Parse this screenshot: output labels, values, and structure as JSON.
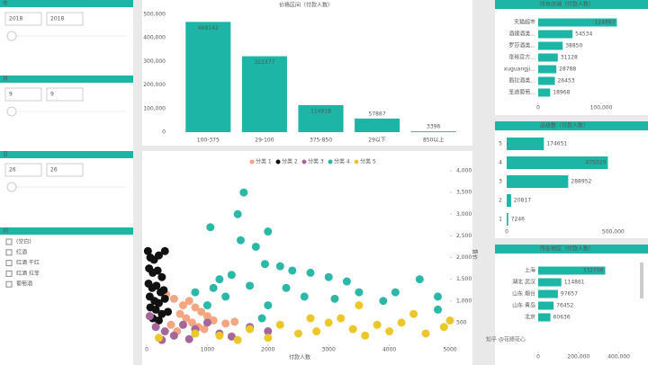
{
  "slicers": [
    {
      "title": "年",
      "from": "2018",
      "to": "2018"
    },
    {
      "title": "月",
      "from": "9",
      "to": "9"
    },
    {
      "title": "日",
      "from": "26",
      "to": "26"
    }
  ],
  "word_slicer": {
    "title": "词",
    "options": [
      "(空白)",
      "红酒",
      "红酒 干红",
      "红酒 拉菲",
      "葡萄酒"
    ]
  },
  "watermark": "知乎 @花随花心",
  "chart_data": [
    {
      "type": "bar",
      "title": "价格区间（付款人数）",
      "color": "#1db5a5",
      "categories": [
        "100-375",
        "29-100",
        "375-850",
        "29以下",
        "850以上"
      ],
      "values": [
        468142,
        322377,
        114918,
        57867,
        3396
      ],
      "ylim": [
        0,
        500000
      ],
      "yticks": [
        0,
        {
          "value": 100000,
          "label": "100,000"
        },
        {
          "value": 200000,
          "label": "200,000"
        },
        {
          "value": 300000,
          "label": "300,000"
        },
        {
          "value": 400000,
          "label": "400,000"
        },
        {
          "value": 500000,
          "label": "500,000"
        }
      ]
    },
    {
      "type": "scatter",
      "x_label": "付款人数",
      "y_label": "售价",
      "xlim": [
        0,
        5000
      ],
      "xticks": [
        0,
        1000,
        2000,
        3000,
        4000,
        5000
      ],
      "ylim": [
        0,
        4000
      ],
      "yticks": [
        {
          "value": 500,
          "label": "500"
        },
        {
          "value": 1000,
          "label": "1,000"
        },
        {
          "value": 1500,
          "label": "1,500"
        },
        {
          "value": 2000,
          "label": "2,000"
        },
        {
          "value": 2500,
          "label": "2,500"
        },
        {
          "value": 3000,
          "label": "3,000"
        },
        {
          "value": 3500,
          "label": "3,500"
        },
        {
          "value": 4000,
          "label": "4,000"
        }
      ],
      "series": [
        {
          "name": "分类 1",
          "color": "#f4a582",
          "x": [
            320,
            450,
            600,
            700,
            800,
            550,
            650,
            900,
            1000,
            750,
            1100,
            400,
            850,
            1300,
            1450,
            500,
            950
          ],
          "values": [
            1150,
            1050,
            900,
            1000,
            850,
            700,
            600,
            750,
            650,
            500,
            550,
            450,
            400,
            480,
            520,
            300,
            350
          ]
        },
        {
          "name": "分类 2",
          "color": "#111111",
          "x": [
            20,
            60,
            120,
            200,
            300,
            40,
            100,
            180,
            250,
            30,
            90,
            160,
            230,
            280,
            50,
            130,
            200,
            300,
            60,
            150,
            250,
            350,
            100,
            200
          ],
          "values": [
            2150,
            2000,
            1950,
            2050,
            2150,
            1750,
            1650,
            1700,
            1550,
            1400,
            1300,
            1350,
            1200,
            1250,
            1100,
            1000,
            950,
            1050,
            850,
            800,
            700,
            750,
            600,
            550
          ]
        },
        {
          "name": "分类 3",
          "color": "#a5669a",
          "x": [
            50,
            150,
            300,
            450,
            600,
            800,
            1000,
            1200,
            1400,
            1700,
            2000,
            250,
            700
          ],
          "values": [
            650,
            400,
            300,
            200,
            450,
            350,
            500,
            250,
            180,
            400,
            300,
            100,
            120
          ]
        },
        {
          "name": "分类 4",
          "color": "#2bb8a8",
          "x": [
            1600,
            1500,
            1550,
            2000,
            1050,
            1800,
            1950,
            2200,
            2400,
            2700,
            3000,
            1200,
            1400,
            1700,
            2300,
            3300,
            3500,
            3900,
            4100,
            4500,
            4800,
            1100,
            2600,
            3100,
            800,
            1300,
            2000,
            4800,
            1900,
            1000
          ],
          "values": [
            3500,
            3000,
            2400,
            2600,
            2700,
            2250,
            1850,
            1800,
            1700,
            1650,
            1550,
            1500,
            1600,
            1350,
            1300,
            1450,
            1200,
            1000,
            1200,
            1500,
            1100,
            1300,
            1100,
            1050,
            1200,
            1100,
            900,
            800,
            600,
            900
          ]
        },
        {
          "name": "分类 5",
          "color": "#ebc72b",
          "x": [
            200,
            800,
            1200,
            1700,
            2200,
            2500,
            2800,
            3000,
            3200,
            3400,
            3600,
            3800,
            4000,
            4200,
            4600,
            4900,
            5000,
            1500,
            2000,
            3500,
            2700,
            4400
          ],
          "values": [
            150,
            250,
            200,
            350,
            450,
            250,
            300,
            500,
            600,
            350,
            200,
            450,
            300,
            500,
            250,
            400,
            550,
            100,
            150,
            900,
            600,
            700
          ]
        }
      ]
    },
    {
      "type": "barh",
      "title": "所有店铺（付款人数）",
      "color": "#1db5a5",
      "categories": [
        "天猫超市",
        "酒媒酒类...",
        "罗莎酒类...",
        "张裕官方...",
        "xuguangji...",
        "翡拉酒类...",
        "圣道葡萄..."
      ],
      "values": [
        124887,
        54534,
        38850,
        31128,
        28788,
        26453,
        18968
      ],
      "xlim": [
        0,
        150000
      ],
      "xticks": [
        0,
        {
          "value": 100000,
          "label": "100,000"
        }
      ]
    },
    {
      "type": "barh",
      "title": "品级数（付款人数）",
      "color": "#1db5a5",
      "categories": [
        "5",
        "4",
        "3",
        "2",
        "1"
      ],
      "values": [
        174651,
        475029,
        288952,
        20817,
        7246
      ],
      "xlim": [
        0,
        600000
      ],
      "xticks": [
        0,
        {
          "value": 500000,
          "label": "500,000"
        }
      ]
    },
    {
      "type": "barh",
      "title": "所在地区（付款人数）",
      "color": "#1db5a5",
      "categories": [
        "上海",
        "湖北 武汉",
        "山东 烟台",
        "山东 青岛",
        "北京"
      ],
      "values": [
        332706,
        114861,
        97657,
        76452,
        60636
      ],
      "xlim": [
        0,
        500000
      ],
      "xticks": [
        0,
        {
          "value": 200000,
          "label": "200,000"
        },
        {
          "value": 400000,
          "label": "400,000"
        }
      ]
    }
  ]
}
